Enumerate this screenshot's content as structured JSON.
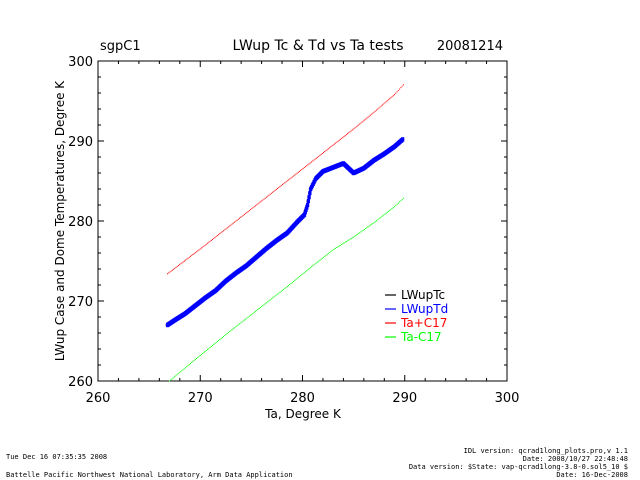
{
  "header": {
    "site": "sgpC1",
    "date": "20081214"
  },
  "chart_data": {
    "type": "scatter",
    "title": "LWup Tc & Td vs Ta tests",
    "xlabel": "Ta, Degree K",
    "ylabel": "LWup Case and Dome Temperatures, Degree K",
    "xlim": [
      260,
      300
    ],
    "ylim": [
      260,
      300
    ],
    "xticks": [
      "260",
      "270",
      "280",
      "290",
      "300"
    ],
    "yticks": [
      "260",
      "270",
      "280",
      "290",
      "300"
    ],
    "grid": false,
    "legend_position": "lower-right",
    "series": [
      {
        "name": "LWupTc",
        "color": "#000000",
        "points": [
          [
            266.8,
            267.0
          ],
          [
            267.5,
            267.6
          ],
          [
            268.5,
            268.4
          ],
          [
            269.5,
            269.4
          ],
          [
            270.5,
            270.4
          ],
          [
            271.5,
            271.3
          ],
          [
            272.5,
            272.5
          ],
          [
            273.5,
            273.5
          ],
          [
            274.5,
            274.4
          ],
          [
            275.5,
            275.5
          ],
          [
            276.5,
            276.6
          ],
          [
            277.5,
            277.6
          ],
          [
            278.5,
            278.5
          ],
          [
            279.5,
            279.9
          ],
          [
            280.2,
            280.8
          ],
          [
            280.5,
            282.0
          ],
          [
            280.8,
            284.0
          ],
          [
            281.3,
            285.3
          ],
          [
            282.0,
            286.2
          ],
          [
            283.0,
            286.7
          ],
          [
            284.0,
            287.2
          ],
          [
            285.0,
            286.0
          ],
          [
            286.0,
            286.6
          ],
          [
            287.0,
            287.6
          ],
          [
            288.0,
            288.4
          ],
          [
            289.0,
            289.3
          ],
          [
            289.8,
            290.1
          ]
        ]
      },
      {
        "name": "LWupTd",
        "color": "#0000ff",
        "points": [
          [
            266.8,
            267.0
          ],
          [
            267.5,
            267.6
          ],
          [
            268.5,
            268.4
          ],
          [
            269.5,
            269.4
          ],
          [
            270.5,
            270.4
          ],
          [
            271.5,
            271.3
          ],
          [
            272.5,
            272.5
          ],
          [
            273.5,
            273.5
          ],
          [
            274.5,
            274.4
          ],
          [
            275.5,
            275.5
          ],
          [
            276.5,
            276.6
          ],
          [
            277.5,
            277.6
          ],
          [
            278.5,
            278.5
          ],
          [
            279.5,
            279.9
          ],
          [
            280.2,
            280.8
          ],
          [
            280.5,
            282.0
          ],
          [
            280.8,
            284.0
          ],
          [
            281.3,
            285.3
          ],
          [
            282.0,
            286.2
          ],
          [
            283.0,
            286.7
          ],
          [
            284.0,
            287.2
          ],
          [
            285.0,
            286.0
          ],
          [
            286.0,
            286.6
          ],
          [
            287.0,
            287.6
          ],
          [
            288.0,
            288.4
          ],
          [
            289.0,
            289.3
          ],
          [
            289.8,
            290.2
          ]
        ]
      },
      {
        "name": "Ta+C17",
        "color": "#ff0000",
        "points": [
          [
            266.8,
            273.4
          ],
          [
            270.0,
            276.5
          ],
          [
            273.0,
            279.5
          ],
          [
            276.0,
            282.5
          ],
          [
            279.0,
            285.5
          ],
          [
            281.0,
            287.5
          ],
          [
            283.0,
            289.5
          ],
          [
            285.0,
            291.5
          ],
          [
            287.0,
            293.6
          ],
          [
            289.0,
            295.8
          ],
          [
            290.0,
            297.2
          ]
        ]
      },
      {
        "name": "Ta-C17",
        "color": "#00ff00",
        "points": [
          [
            267.0,
            260.0
          ],
          [
            270.0,
            263.2
          ],
          [
            273.0,
            266.3
          ],
          [
            276.0,
            269.3
          ],
          [
            279.0,
            272.3
          ],
          [
            281.0,
            274.4
          ],
          [
            283.0,
            276.4
          ],
          [
            285.0,
            278.0
          ],
          [
            287.0,
            279.8
          ],
          [
            289.0,
            281.8
          ],
          [
            290.0,
            283.0
          ]
        ]
      }
    ]
  },
  "footer": {
    "timestamp": "Tue Dec 16 07:35:35 2008",
    "organization": "Battelle Pacific Northwest National Laboratory, Arm Data Application",
    "idl_version": "IDL version: qcrad1long_plots.pro,v 1.1",
    "idl_date": "Date: 2008/10/27 22:48:48",
    "data_version": "Data version: $State: vap-qcrad1long-3.8-0.sol5_10 $",
    "data_date": "Date: 16-Dec-2008"
  }
}
